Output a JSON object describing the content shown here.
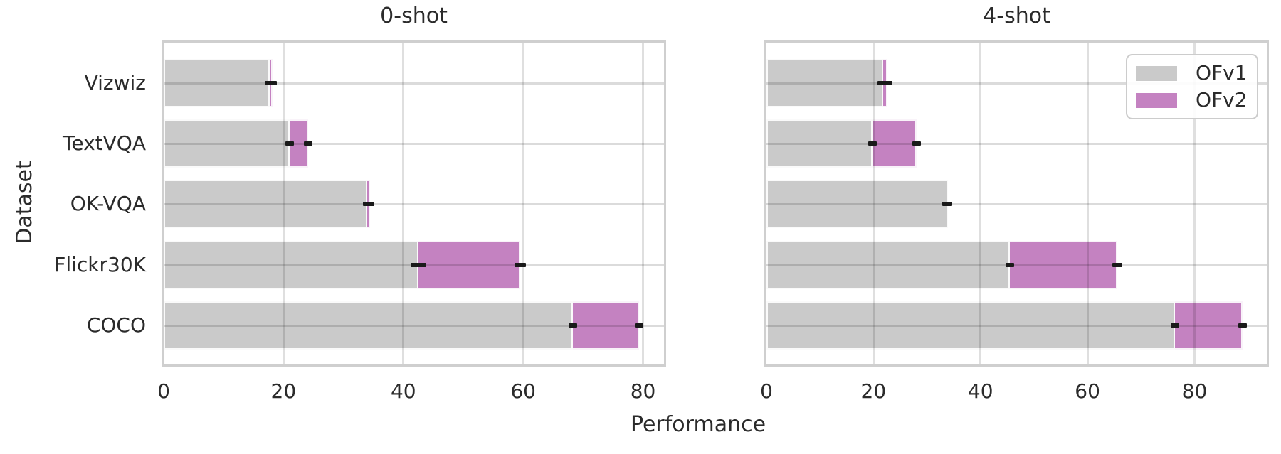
{
  "figure": {
    "xlabel": "Performance",
    "ylabel": "Dataset",
    "legend": [
      {
        "label": "OFv1",
        "color": "#cacaca"
      },
      {
        "label": "OFv2",
        "color": "#c482c1"
      }
    ],
    "colors": {
      "ofv1_bar": "#cacaca",
      "ofv2_bar": "#c482c1",
      "error_bar": "#1a1a1a",
      "gridline": "#dfdfdf",
      "plot_border": "#cfcfcf",
      "background": "#ffffff",
      "text": "#2b2b2b"
    }
  },
  "chart_data": [
    {
      "type": "bar",
      "orientation": "horizontal",
      "title": "0-shot",
      "categories": [
        "Vizwiz",
        "TextVQA",
        "OK-VQA",
        "Flickr30K",
        "COCO"
      ],
      "series": [
        {
          "name": "OFv1",
          "values": [
            17.7,
            21.0,
            34.0,
            42.5,
            68.3
          ],
          "errors": [
            0.8,
            0.4,
            0.4,
            1.3,
            0.7
          ]
        },
        {
          "name": "OFv2",
          "values": [
            18.2,
            24.1,
            34.5,
            59.5,
            79.4
          ],
          "errors": [
            0.4,
            0.6,
            0.3,
            1.0,
            0.6
          ]
        }
      ],
      "xlabel": "Performance",
      "ylabel": "Dataset",
      "xticks": [
        0,
        20,
        40,
        60,
        80
      ],
      "xlim": [
        0,
        83.5
      ],
      "grid": true,
      "legend_position": null
    },
    {
      "type": "bar",
      "orientation": "horizontal",
      "title": "4-shot",
      "categories": [
        "Vizwiz",
        "TextVQA",
        "OK-VQA",
        "Flickr30K",
        "COCO"
      ],
      "series": [
        {
          "name": "OFv1",
          "values": [
            21.8,
            19.8,
            33.9,
            45.5,
            76.3
          ],
          "errors": [
            1.0,
            0.4,
            0.4,
            0.7,
            0.7
          ]
        },
        {
          "name": "OFv2",
          "values": [
            22.6,
            28.0,
            33.7,
            65.6,
            89.0
          ],
          "errors": [
            0.9,
            0.8,
            0.3,
            0.9,
            0.7
          ]
        }
      ],
      "xlabel": "Performance",
      "ylabel": "Dataset",
      "xticks": [
        0,
        20,
        40,
        60,
        80
      ],
      "xlim": [
        0,
        93.5
      ],
      "grid": true,
      "legend_position": "upper right"
    }
  ]
}
